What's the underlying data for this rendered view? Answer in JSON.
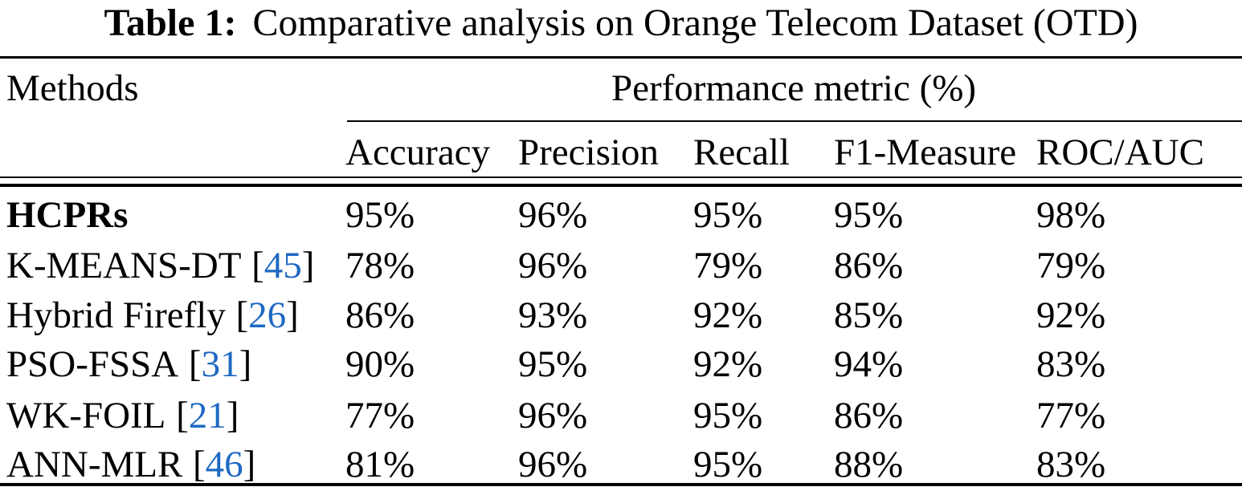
{
  "title": {
    "label": "Table 1:",
    "text": "Comparative analysis on Orange Telecom Dataset (OTD)"
  },
  "table": {
    "group_headers": {
      "methods": "Methods",
      "performance": "Performance metric (%)"
    },
    "columns": [
      "Accuracy",
      "Precision",
      "Recall",
      "F1-Measure",
      "ROC/AUC"
    ],
    "rows": [
      {
        "method": "HCPRs",
        "cite_open": "",
        "cite": "",
        "cite_close": "",
        "values": [
          "95%",
          "96%",
          "95%",
          "95%",
          "98%"
        ]
      },
      {
        "method": "K-MEANS-DT",
        "cite_open": "[",
        "cite": "45",
        "cite_close": "]",
        "values": [
          "78%",
          "96%",
          "79%",
          "86%",
          "79%"
        ]
      },
      {
        "method": "Hybrid Firefly",
        "cite_open": "[",
        "cite": "26",
        "cite_close": "]",
        "values": [
          "86%",
          "93%",
          "92%",
          "85%",
          "92%"
        ]
      },
      {
        "method": "PSO-FSSA",
        "cite_open": "[",
        "cite": "31",
        "cite_close": "]",
        "values": [
          "90%",
          "95%",
          "92%",
          "94%",
          "83%"
        ]
      },
      {
        "method": "WK-FOIL",
        "cite_open": "[",
        "cite": "21",
        "cite_close": "]",
        "values": [
          "77%",
          "96%",
          "95%",
          "86%",
          "77%"
        ]
      },
      {
        "method": "ANN-MLR",
        "cite_open": "[",
        "cite": "46",
        "cite_close": "]",
        "values": [
          "81%",
          "96%",
          "95%",
          "88%",
          "83%"
        ]
      }
    ],
    "colors": {
      "text": "#000000",
      "citation": "#1e69c3",
      "rule": "#000000",
      "background": "#ffffff"
    }
  }
}
